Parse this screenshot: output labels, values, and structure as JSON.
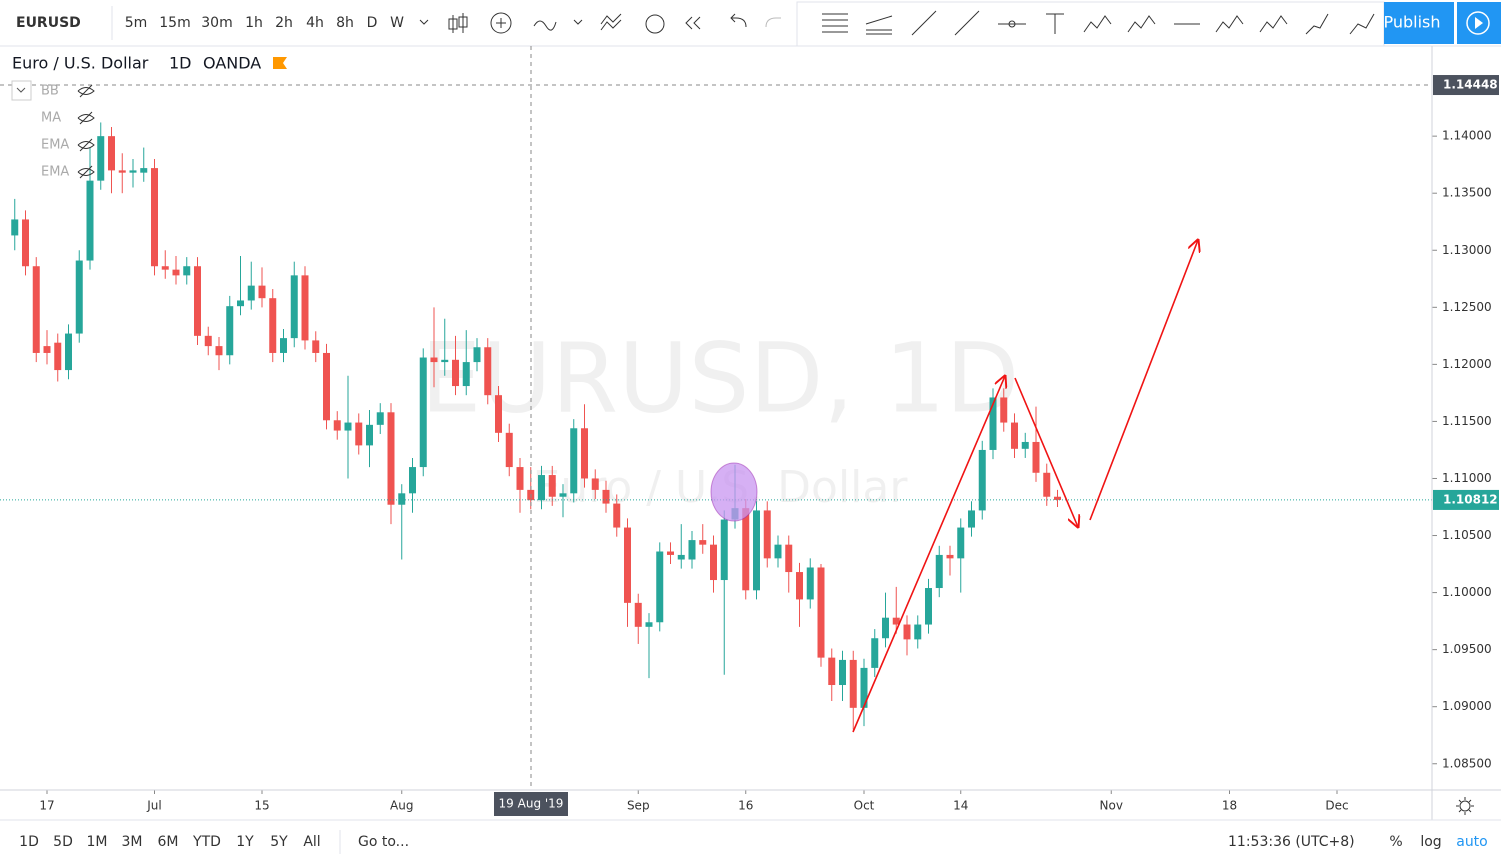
{
  "toolbar": {
    "symbol": "EURUSD",
    "intervals": [
      "5m",
      "15m",
      "30m",
      "1h",
      "2h",
      "4h",
      "8h",
      "D",
      "W"
    ],
    "publish": "Publish"
  },
  "legend": {
    "name": "Euro / U.S. Dollar",
    "interval": "1D",
    "source": "OANDA",
    "indicators": [
      "BB",
      "MA",
      "EMA",
      "EMA"
    ]
  },
  "watermark": {
    "title": "EURUSD, 1D",
    "subtitle": "Euro / U.S. Dollar"
  },
  "crosshair_label": "19 Aug '19",
  "bottom_bar": {
    "ranges": [
      "1D",
      "5D",
      "1M",
      "3M",
      "6M",
      "YTD",
      "1Y",
      "5Y",
      "All"
    ],
    "goto": "Go to...",
    "clock": "11:53:36 (UTC+8)",
    "options": [
      "%",
      "log",
      "auto"
    ]
  },
  "chart_data": {
    "type": "candlestick",
    "up_color": "#26a69a",
    "down_color": "#ef5350",
    "ylim": [
      1.0827,
      1.1479
    ],
    "yticks": [
      {
        "value": 1.085,
        "label": "1.08500"
      },
      {
        "value": 1.09,
        "label": "1.09000"
      },
      {
        "value": 1.095,
        "label": "1.09500"
      },
      {
        "value": 1.1,
        "label": "1.10000"
      },
      {
        "value": 1.105,
        "label": "1.10500"
      },
      {
        "value": 1.11,
        "label": "1.11000"
      },
      {
        "value": 1.115,
        "label": "1.11500"
      },
      {
        "value": 1.12,
        "label": "1.12000"
      },
      {
        "value": 1.125,
        "label": "1.12500"
      },
      {
        "value": 1.13,
        "label": "1.13000"
      },
      {
        "value": 1.135,
        "label": "1.13500"
      },
      {
        "value": 1.14,
        "label": "1.14000"
      }
    ],
    "xticks": [
      {
        "value": 3,
        "label": "17"
      },
      {
        "value": 13,
        "label": "Jul"
      },
      {
        "value": 23,
        "label": "15"
      },
      {
        "value": 36,
        "label": "Aug"
      },
      {
        "value": 58,
        "label": "Sep"
      },
      {
        "value": 68,
        "label": "16"
      },
      {
        "value": 79,
        "label": "Oct"
      },
      {
        "value": 88,
        "label": "14"
      },
      {
        "value": 102,
        "label": "Nov"
      },
      {
        "value": 113,
        "label": "18"
      },
      {
        "value": 123,
        "label": "Dec"
      }
    ],
    "price_labels": [
      1.14448,
      1.10812
    ],
    "candles": [
      [
        1.1313,
        1.1345,
        1.13,
        1.1327
      ],
      [
        1.1327,
        1.1335,
        1.1278,
        1.1286
      ],
      [
        1.1286,
        1.1294,
        1.1202,
        1.121
      ],
      [
        1.1216,
        1.123,
        1.12,
        1.121
      ],
      [
        1.1219,
        1.1227,
        1.1185,
        1.1195
      ],
      [
        1.1195,
        1.1235,
        1.1187,
        1.1227
      ],
      [
        1.1227,
        1.13,
        1.1219,
        1.1291
      ],
      [
        1.1291,
        1.139,
        1.1283,
        1.1361
      ],
      [
        1.1361,
        1.1412,
        1.1353,
        1.14
      ],
      [
        1.14,
        1.1408,
        1.135,
        1.137
      ],
      [
        1.137,
        1.1385,
        1.135,
        1.1368
      ],
      [
        1.1368,
        1.138,
        1.1355,
        1.137
      ],
      [
        1.1368,
        1.139,
        1.136,
        1.1372
      ],
      [
        1.1372,
        1.138,
        1.1278,
        1.1286
      ],
      [
        1.1286,
        1.13,
        1.1275,
        1.1283
      ],
      [
        1.1283,
        1.1295,
        1.127,
        1.1278
      ],
      [
        1.1278,
        1.1294,
        1.127,
        1.1286
      ],
      [
        1.1286,
        1.1294,
        1.1217,
        1.1225
      ],
      [
        1.1225,
        1.1233,
        1.1208,
        1.1216
      ],
      [
        1.1216,
        1.1224,
        1.1195,
        1.1208
      ],
      [
        1.1208,
        1.126,
        1.12,
        1.1251
      ],
      [
        1.1251,
        1.1295,
        1.1243,
        1.1256
      ],
      [
        1.1256,
        1.129,
        1.1248,
        1.1269
      ],
      [
        1.1269,
        1.1285,
        1.125,
        1.1258
      ],
      [
        1.1258,
        1.1266,
        1.1202,
        1.121
      ],
      [
        1.121,
        1.1231,
        1.1202,
        1.1223
      ],
      [
        1.1223,
        1.129,
        1.1215,
        1.1278
      ],
      [
        1.1278,
        1.1286,
        1.1213,
        1.1221
      ],
      [
        1.1221,
        1.1229,
        1.1202,
        1.121
      ],
      [
        1.121,
        1.1218,
        1.1143,
        1.1151
      ],
      [
        1.1151,
        1.1159,
        1.1134,
        1.1142
      ],
      [
        1.1142,
        1.119,
        1.11,
        1.1149
      ],
      [
        1.1149,
        1.1157,
        1.1121,
        1.1129
      ],
      [
        1.1129,
        1.116,
        1.111,
        1.1147
      ],
      [
        1.1147,
        1.1166,
        1.1139,
        1.1158
      ],
      [
        1.1158,
        1.1166,
        1.106,
        1.1077
      ],
      [
        1.1077,
        1.1095,
        1.1029,
        1.1087
      ],
      [
        1.1087,
        1.1118,
        1.107,
        1.111
      ],
      [
        1.111,
        1.1214,
        1.1102,
        1.1206
      ],
      [
        1.1206,
        1.125,
        1.118,
        1.1202
      ],
      [
        1.1202,
        1.124,
        1.119,
        1.1204
      ],
      [
        1.1204,
        1.1225,
        1.1173,
        1.1181
      ],
      [
        1.1181,
        1.123,
        1.1173,
        1.1202
      ],
      [
        1.1202,
        1.1223,
        1.1194,
        1.1215
      ],
      [
        1.1215,
        1.1223,
        1.1165,
        1.1173
      ],
      [
        1.1173,
        1.1181,
        1.1132,
        1.114
      ],
      [
        1.114,
        1.1148,
        1.1102,
        1.111
      ],
      [
        1.111,
        1.1118,
        1.107,
        1.109
      ],
      [
        1.109,
        1.111,
        1.1073,
        1.1081
      ],
      [
        1.1081,
        1.1111,
        1.1073,
        1.1103
      ],
      [
        1.1103,
        1.1111,
        1.1076,
        1.1084
      ],
      [
        1.1084,
        1.1095,
        1.1066,
        1.1087
      ],
      [
        1.1087,
        1.1152,
        1.1079,
        1.1144
      ],
      [
        1.1144,
        1.1165,
        1.1092,
        1.11
      ],
      [
        1.11,
        1.1108,
        1.1082,
        1.109
      ],
      [
        1.109,
        1.1098,
        1.107,
        1.1078
      ],
      [
        1.1078,
        1.1086,
        1.1049,
        1.1057
      ],
      [
        1.1057,
        1.1065,
        1.097,
        1.0991
      ],
      [
        1.0991,
        1.0999,
        1.0955,
        1.097
      ],
      [
        1.097,
        1.0982,
        1.0925,
        1.0974
      ],
      [
        1.0974,
        1.1044,
        1.0966,
        1.1036
      ],
      [
        1.1036,
        1.1044,
        1.1025,
        1.1033
      ],
      [
        1.1029,
        1.106,
        1.1021,
        1.1033
      ],
      [
        1.1029,
        1.1054,
        1.1021,
        1.1046
      ],
      [
        1.1046,
        1.106,
        1.1034,
        1.1042
      ],
      [
        1.1042,
        1.105,
        1.1,
        1.1011
      ],
      [
        1.1011,
        1.1072,
        1.0928,
        1.1064
      ],
      [
        1.1064,
        1.1112,
        1.1056,
        1.1074
      ],
      [
        1.1074,
        1.1082,
        1.0994,
        1.1002
      ],
      [
        1.1002,
        1.108,
        1.0994,
        1.1072
      ],
      [
        1.1072,
        1.108,
        1.1022,
        1.103
      ],
      [
        1.103,
        1.105,
        1.1022,
        1.1042
      ],
      [
        1.1042,
        1.105,
        1.1,
        1.1018
      ],
      [
        1.1018,
        1.1026,
        1.097,
        1.0994
      ],
      [
        1.0994,
        1.103,
        1.0986,
        1.1022
      ],
      [
        1.1022,
        1.1025,
        1.0935,
        1.0943
      ],
      [
        1.0943,
        1.0951,
        1.0905,
        1.0919
      ],
      [
        1.0919,
        1.0949,
        1.0905,
        1.0941
      ],
      [
        1.0941,
        1.0949,
        1.088,
        1.0899
      ],
      [
        1.0899,
        1.0942,
        1.0883,
        1.0934
      ],
      [
        1.0934,
        1.0968,
        1.0926,
        1.096
      ],
      [
        1.096,
        1.1,
        1.0952,
        1.0978
      ],
      [
        1.0978,
        1.1005,
        1.0964,
        1.0972
      ],
      [
        1.0972,
        1.098,
        1.0945,
        1.0959
      ],
      [
        1.0959,
        1.098,
        1.0951,
        1.0972
      ],
      [
        1.0972,
        1.1012,
        1.0964,
        1.1004
      ],
      [
        1.1004,
        1.1041,
        1.0996,
        1.1033
      ],
      [
        1.1033,
        1.1041,
        1.1015,
        1.103
      ],
      [
        1.103,
        1.1065,
        1.1,
        1.1057
      ],
      [
        1.1057,
        1.108,
        1.1049,
        1.1072
      ],
      [
        1.1072,
        1.1133,
        1.1064,
        1.1125
      ],
      [
        1.1125,
        1.1179,
        1.1117,
        1.1171
      ],
      [
        1.1171,
        1.1179,
        1.1141,
        1.1149
      ],
      [
        1.1149,
        1.1157,
        1.1118,
        1.1126
      ],
      [
        1.1126,
        1.114,
        1.1118,
        1.1132
      ],
      [
        1.1132,
        1.1163,
        1.1097,
        1.1105
      ],
      [
        1.1105,
        1.1113,
        1.1076,
        1.1084
      ],
      [
        1.1084,
        1.109,
        1.1075,
        1.10812
      ]
    ]
  }
}
